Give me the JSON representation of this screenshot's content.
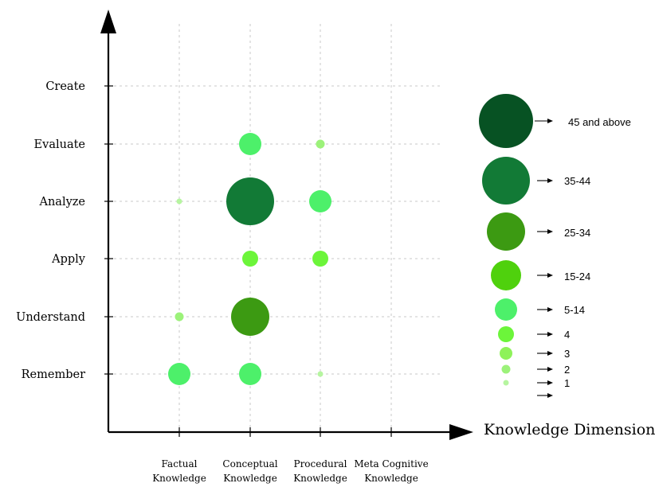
{
  "chart_data": {
    "type": "scatter",
    "xlabel": "Knowledge Dimension",
    "ylabel": "",
    "x_categories": [
      "Factual Knowledge",
      "Conceptual Knowledge",
      "Procedural Knowledge",
      "Meta Cognitive Knowledge"
    ],
    "y_categories": [
      "Remember",
      "Understand",
      "Apply",
      "Analyze",
      "Evaluate",
      "Create"
    ],
    "grid": true,
    "legend_position": "right",
    "legend": [
      {
        "label": "45 and above",
        "color": "#075223"
      },
      {
        "label": "35-44",
        "color": "#127a36"
      },
      {
        "label": "25-34",
        "color": "#3c9a12"
      },
      {
        "label": "15-24",
        "color": "#4fd10d"
      },
      {
        "label": "5-14",
        "color": "#4df06a"
      },
      {
        "label": "4",
        "color": "#6cf53a"
      },
      {
        "label": "3",
        "color": "#8ef25a"
      },
      {
        "label": "2",
        "color": "#9cf27a"
      },
      {
        "label": "1",
        "color": "#b6f5a0"
      },
      {
        "label": "",
        "color": "#ffffff"
      }
    ],
    "points": [
      {
        "x": "Conceptual Knowledge",
        "y": "Evaluate",
        "category": "5-14"
      },
      {
        "x": "Procedural Knowledge",
        "y": "Evaluate",
        "category": "2"
      },
      {
        "x": "Factual Knowledge",
        "y": "Analyze",
        "category": "1"
      },
      {
        "x": "Conceptual Knowledge",
        "y": "Analyze",
        "category": "35-44"
      },
      {
        "x": "Procedural Knowledge",
        "y": "Analyze",
        "category": "5-14"
      },
      {
        "x": "Conceptual Knowledge",
        "y": "Apply",
        "category": "4"
      },
      {
        "x": "Procedural Knowledge",
        "y": "Apply",
        "category": "4"
      },
      {
        "x": "Factual Knowledge",
        "y": "Understand",
        "category": "2"
      },
      {
        "x": "Conceptual Knowledge",
        "y": "Understand",
        "category": "25-34"
      },
      {
        "x": "Factual Knowledge",
        "y": "Remember",
        "category": "5-14"
      },
      {
        "x": "Conceptual Knowledge",
        "y": "Remember",
        "category": "5-14"
      },
      {
        "x": "Procedural Knowledge",
        "y": "Remember",
        "category": "1"
      }
    ]
  }
}
